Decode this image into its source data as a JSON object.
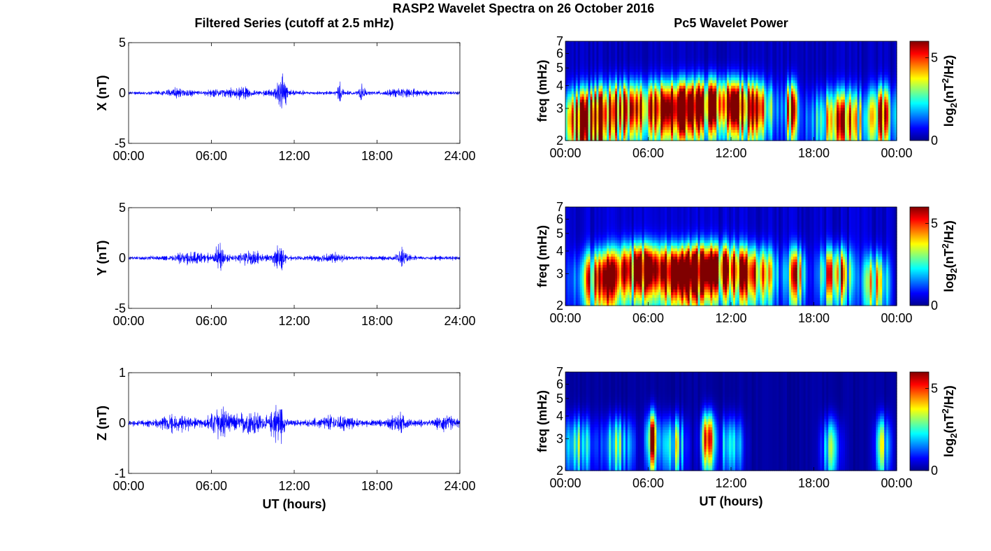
{
  "suptitle": "RASP2 Wavelet Spectra on 26 October 2016",
  "left_title": "Filtered Series (cutoff at 2.5 mHz)",
  "right_title": "Pc5 Wavelet Power",
  "xlabel": "UT (hours)",
  "colorbar_label_pre": "log",
  "colorbar_label_sub": "2",
  "colorbar_label_mid": "(nT",
  "colorbar_label_sup": "2",
  "colorbar_label_post": "/Hz)",
  "chart_data": [
    {
      "type": "line",
      "name": "X",
      "ylabel": "X (nT)",
      "xlim": [
        0,
        24
      ],
      "ylim": [
        -5,
        5
      ],
      "yticks": [
        "5",
        "0",
        "-5"
      ],
      "xticks": [
        "00:00",
        "06:00",
        "12:00",
        "18:00",
        "24:00"
      ],
      "color": "#0000ff",
      "base_amplitude": 0.35,
      "bursts": [
        {
          "t": 3.6,
          "amp": 0.7,
          "w": 1.0
        },
        {
          "t": 6.5,
          "amp": 0.6,
          "w": 0.8
        },
        {
          "t": 8.3,
          "amp": 1.0,
          "w": 0.7
        },
        {
          "t": 11.1,
          "amp": 2.8,
          "w": 0.25
        },
        {
          "t": 11.0,
          "amp": 1.0,
          "w": 0.9
        },
        {
          "t": 15.3,
          "amp": 1.8,
          "w": 0.2
        },
        {
          "t": 16.9,
          "amp": 1.7,
          "w": 0.2
        },
        {
          "t": 20.0,
          "amp": 0.6,
          "w": 1.5
        }
      ]
    },
    {
      "type": "line",
      "name": "Y",
      "ylabel": "Y (nT)",
      "xlim": [
        0,
        24
      ],
      "ylim": [
        -5,
        5
      ],
      "yticks": [
        "5",
        "0",
        "-5"
      ],
      "xticks": [
        "00:00",
        "06:00",
        "12:00",
        "18:00",
        "24:00"
      ],
      "color": "#0000ff",
      "base_amplitude": 0.4,
      "bursts": [
        {
          "t": 4.5,
          "amp": 0.9,
          "w": 1.2
        },
        {
          "t": 6.6,
          "amp": 2.3,
          "w": 0.4
        },
        {
          "t": 8.8,
          "amp": 1.0,
          "w": 1.0
        },
        {
          "t": 10.9,
          "amp": 2.4,
          "w": 0.4
        },
        {
          "t": 14.5,
          "amp": 0.7,
          "w": 1.0
        },
        {
          "t": 19.8,
          "amp": 1.5,
          "w": 0.4
        }
      ]
    },
    {
      "type": "line",
      "name": "Z",
      "ylabel": "Z (nT)",
      "xlim": [
        0,
        24
      ],
      "ylim": [
        -1,
        1
      ],
      "yticks": [
        "1",
        "0",
        "-1"
      ],
      "xticks": [
        "00:00",
        "06:00",
        "12:00",
        "18:00",
        "24:00"
      ],
      "color": "#0000ff",
      "base_amplitude": 0.12,
      "bursts": [
        {
          "t": 3.5,
          "amp": 0.25,
          "w": 1.2
        },
        {
          "t": 6.6,
          "amp": 0.65,
          "w": 0.7
        },
        {
          "t": 8.8,
          "amp": 0.45,
          "w": 1.0
        },
        {
          "t": 10.8,
          "amp": 0.65,
          "w": 0.5
        },
        {
          "t": 15.0,
          "amp": 0.25,
          "w": 1.2
        },
        {
          "t": 19.6,
          "amp": 0.3,
          "w": 0.6
        },
        {
          "t": 23.0,
          "amp": 0.25,
          "w": 0.6
        }
      ]
    },
    {
      "type": "heatmap",
      "name": "X wavelet power",
      "ylabel": "freq (mHz)",
      "xlim": [
        0,
        24
      ],
      "ylim": [
        2,
        7
      ],
      "yscale": "log",
      "yticks": [
        "2",
        "3",
        "4",
        "5",
        "6",
        "7"
      ],
      "xticks": [
        "00:00",
        "06:00",
        "12:00",
        "18:00",
        "00:00"
      ],
      "colorbar": {
        "ticks": [
          "0",
          "5"
        ],
        "range": [
          0,
          6
        ]
      },
      "background": 0.4,
      "hot_spots": [
        {
          "t": 1.5,
          "f": 2.6,
          "p": 5.5,
          "w": 1.8
        },
        {
          "t": 4.5,
          "f": 3.0,
          "p": 5.5,
          "w": 2.2
        },
        {
          "t": 8.2,
          "f": 3.0,
          "p": 6.0,
          "w": 2.0
        },
        {
          "t": 11.0,
          "f": 3.2,
          "p": 6.0,
          "w": 2.0
        },
        {
          "t": 13.5,
          "f": 3.0,
          "p": 5.0,
          "w": 1.5
        },
        {
          "t": 16.4,
          "f": 3.0,
          "p": 6.0,
          "w": 0.4
        },
        {
          "t": 20.0,
          "f": 2.6,
          "p": 4.5,
          "w": 2.0
        },
        {
          "t": 23.0,
          "f": 2.8,
          "p": 4.5,
          "w": 0.8
        }
      ]
    },
    {
      "type": "heatmap",
      "name": "Y wavelet power",
      "ylabel": "freq (mHz)",
      "xlim": [
        0,
        24
      ],
      "ylim": [
        2,
        7
      ],
      "yscale": "log",
      "yticks": [
        "2",
        "3",
        "4",
        "5",
        "6",
        "7"
      ],
      "xticks": [
        "00:00",
        "06:00",
        "12:00",
        "18:00",
        "00:00"
      ],
      "colorbar": {
        "ticks": [
          "0",
          "5"
        ],
        "range": [
          0,
          6
        ]
      },
      "background": 0.5,
      "hot_spots": [
        {
          "t": 2.5,
          "f": 2.8,
          "p": 5.0,
          "w": 1.5
        },
        {
          "t": 5.5,
          "f": 3.2,
          "p": 6.0,
          "w": 2.0
        },
        {
          "t": 8.5,
          "f": 3.0,
          "p": 5.5,
          "w": 1.5
        },
        {
          "t": 10.8,
          "f": 3.2,
          "p": 6.0,
          "w": 2.0
        },
        {
          "t": 13.8,
          "f": 3.0,
          "p": 5.0,
          "w": 1.5
        },
        {
          "t": 16.8,
          "f": 3.0,
          "p": 5.0,
          "w": 0.6
        },
        {
          "t": 19.6,
          "f": 3.0,
          "p": 5.5,
          "w": 1.0
        },
        {
          "t": 22.5,
          "f": 2.7,
          "p": 4.5,
          "w": 0.8
        }
      ]
    },
    {
      "type": "heatmap",
      "name": "Z wavelet power",
      "ylabel": "freq (mHz)",
      "xlim": [
        0,
        24
      ],
      "ylim": [
        2,
        7
      ],
      "yscale": "log",
      "yticks": [
        "2",
        "3",
        "4",
        "5",
        "6",
        "7"
      ],
      "xticks": [
        "00:00",
        "06:00",
        "12:00",
        "18:00",
        "00:00"
      ],
      "colorbar": {
        "ticks": [
          "0",
          "5"
        ],
        "range": [
          0,
          6
        ]
      },
      "background": 0.2,
      "hot_spots": [
        {
          "t": 1.0,
          "f": 2.8,
          "p": 2.5,
          "w": 1.0
        },
        {
          "t": 3.8,
          "f": 2.8,
          "p": 3.0,
          "w": 1.0
        },
        {
          "t": 6.3,
          "f": 3.0,
          "p": 5.5,
          "w": 0.4
        },
        {
          "t": 7.8,
          "f": 2.8,
          "p": 3.5,
          "w": 0.8
        },
        {
          "t": 10.4,
          "f": 3.0,
          "p": 5.5,
          "w": 0.5
        },
        {
          "t": 12.0,
          "f": 2.8,
          "p": 2.5,
          "w": 0.8
        },
        {
          "t": 19.3,
          "f": 2.7,
          "p": 3.0,
          "w": 0.6
        },
        {
          "t": 23.0,
          "f": 2.8,
          "p": 2.8,
          "w": 0.5
        }
      ]
    }
  ]
}
